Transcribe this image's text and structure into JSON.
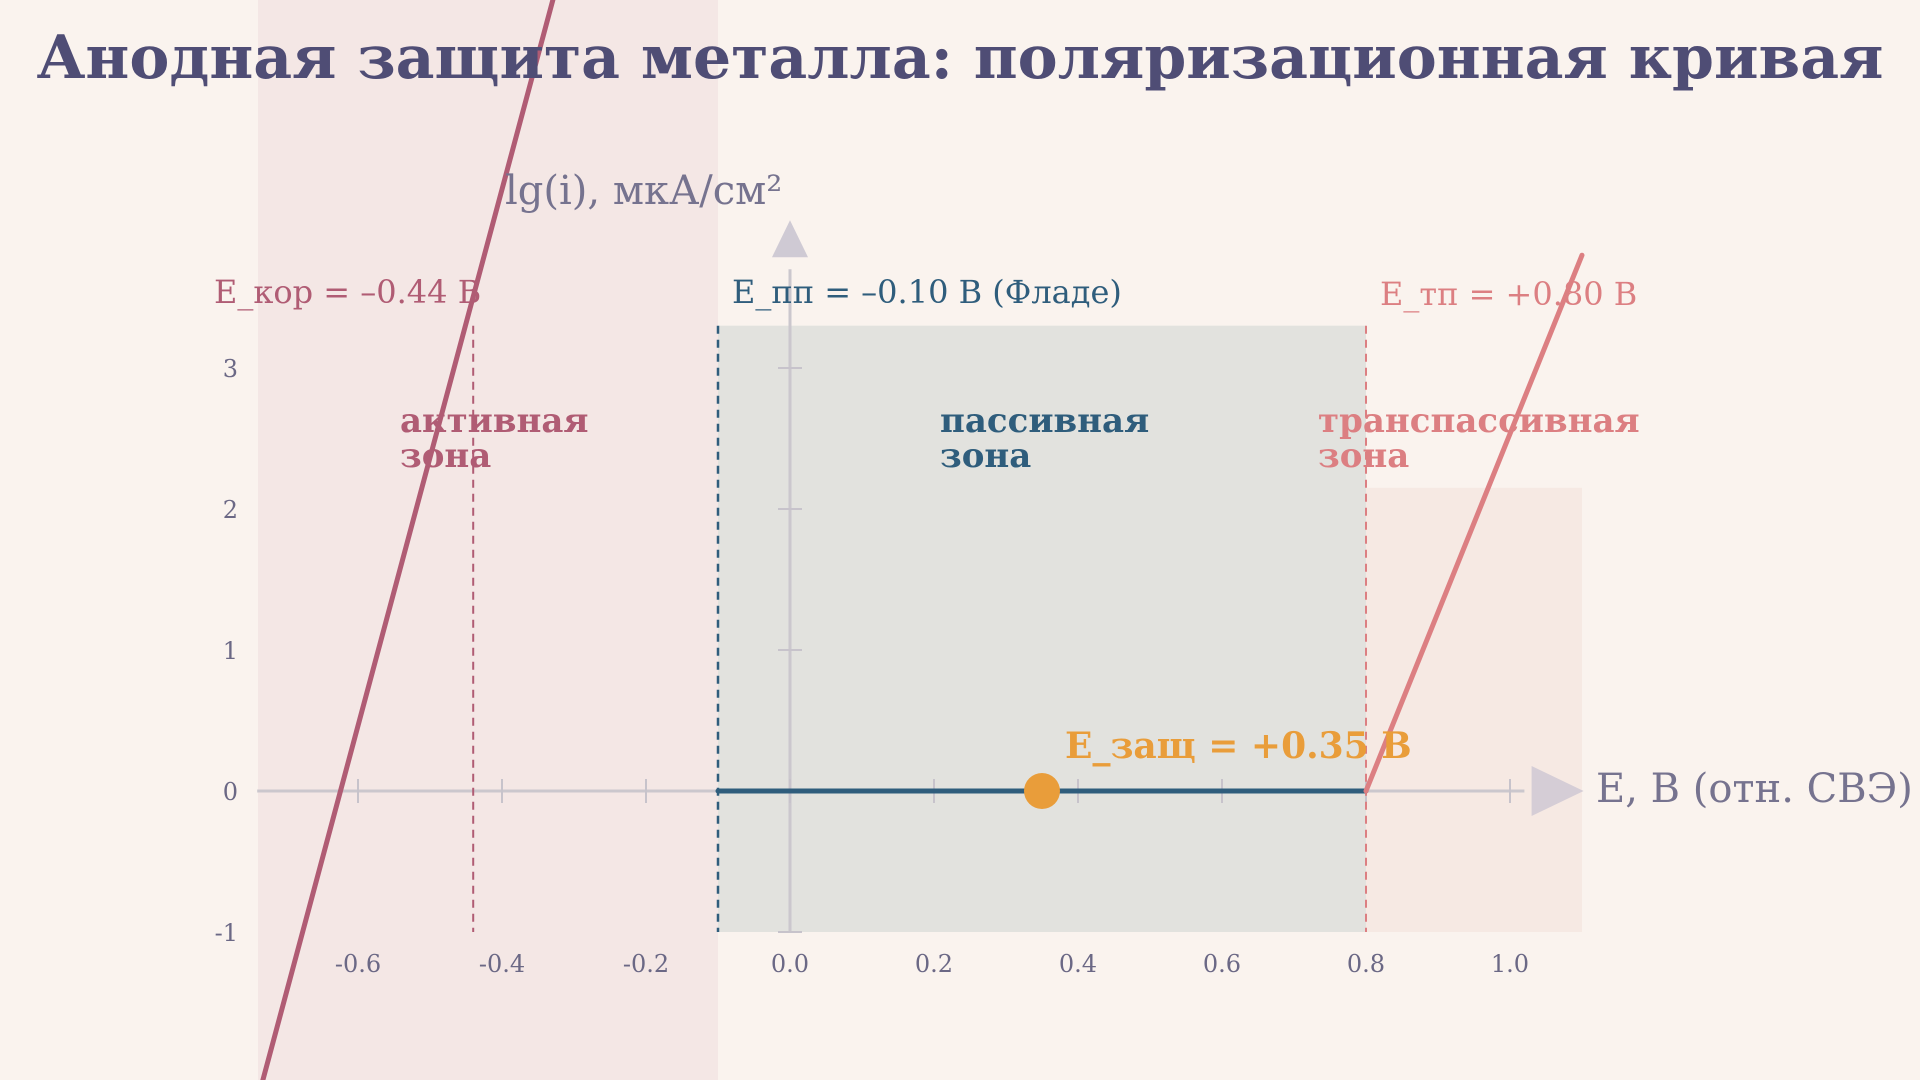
{
  "page": {
    "title": "Анодная защита металла: поляризационная кривая"
  },
  "colors": {
    "background": "#faf3ee",
    "title": "#4f4d75",
    "axis": "#c9c5cc",
    "active": "#b05c74",
    "passive": "#2f5d7c",
    "passive_fill": "#e2e2de",
    "transpassive": "#dc7f82",
    "protection": "#e99d3a"
  },
  "chart_data": {
    "type": "line",
    "title": "Анодная защита металла: поляризационная кривая",
    "xlabel": "E, В (отн. СВЭ)",
    "ylabel": "lg(i), мкА/см²",
    "xlim": [
      -0.74,
      1.1
    ],
    "ylim": [
      -1,
      3.3
    ],
    "x_ticks": [
      -0.6,
      -0.4,
      -0.2,
      0.0,
      0.2,
      0.4,
      0.6,
      0.8,
      1.0
    ],
    "x_tick_labels": [
      "-0.6",
      "-0.4",
      "-0.2",
      "0.0",
      "0.2",
      "0.4",
      "0.6",
      "0.8",
      "1.0"
    ],
    "y_ticks": [
      -1,
      0,
      1,
      2,
      3
    ],
    "y_tick_labels": [
      "-1",
      "0",
      "1",
      "2",
      "3"
    ],
    "grid": false,
    "series": [
      {
        "key": "active",
        "x": [
          -0.74,
          -0.23
        ],
        "y": [
          -2.2,
          7.5
        ]
      },
      {
        "key": "passive",
        "x": [
          -0.1,
          0.8
        ],
        "y": [
          0,
          0
        ]
      },
      {
        "key": "transpassive",
        "x": [
          0.8,
          1.1
        ],
        "y": [
          0,
          3.8
        ]
      }
    ],
    "markers": [
      {
        "key": "corrosion",
        "x": -0.44,
        "label": "E_кор = –0.44 В"
      },
      {
        "key": "passivation",
        "x": -0.1,
        "label": "E_пп = –0.10 В (Фладе)"
      },
      {
        "key": "transpassive",
        "x": 0.8,
        "label": "E_тп = +0.80 В"
      }
    ],
    "zones": [
      {
        "key": "active",
        "line1": "активная",
        "line2": "зона"
      },
      {
        "key": "passive",
        "line1": "пассивная",
        "line2": "зона"
      },
      {
        "key": "transpassive",
        "line1": "транспассивная",
        "line2": "зона"
      }
    ],
    "protection_point": {
      "x": 0.35,
      "y": 0,
      "label": "E_защ = +0.35 В"
    }
  }
}
